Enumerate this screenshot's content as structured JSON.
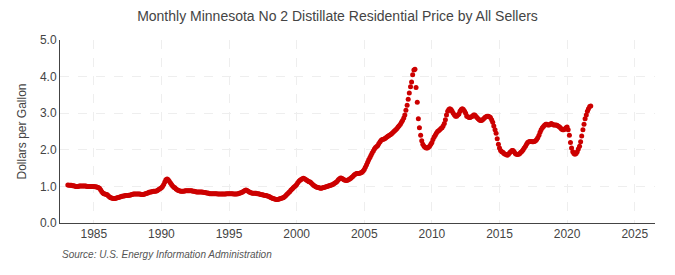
{
  "chart_data": {
    "type": "scatter",
    "title": "Monthly Minnesota No 2 Distillate Residential Price by All Sellers",
    "ylabel": "Dollars per Gallon",
    "annotations": [
      "Source: U.S. Energy Information Administration"
    ],
    "color": "#CC0000",
    "marker": "circle",
    "grid": true,
    "xlim": [
      1982.5,
      2026.5
    ],
    "xticks": [
      1985,
      1990,
      1995,
      2000,
      2005,
      2010,
      2015,
      2020,
      2025
    ],
    "ylim": [
      0.0,
      5.0
    ],
    "yticks": [
      {
        "value": 0.0,
        "label": "0.0"
      },
      {
        "value": 1.0,
        "label": "1.0"
      },
      {
        "value": 2.0,
        "label": "2.0"
      },
      {
        "value": 3.0,
        "label": "3.0"
      },
      {
        "value": 4.0,
        "label": "4.0"
      },
      {
        "value": 5.0,
        "label": "5.0"
      }
    ],
    "x": [
      1983.08,
      1983.17,
      1983.25,
      1983.33,
      1983.42,
      1983.5,
      1983.58,
      1983.67,
      1983.75,
      1983.83,
      1983.92,
      1984.0,
      1984.08,
      1984.17,
      1984.25,
      1984.33,
      1984.42,
      1984.5,
      1984.58,
      1984.67,
      1984.75,
      1984.83,
      1984.92,
      1985.0,
      1985.08,
      1985.17,
      1985.25,
      1985.33,
      1985.42,
      1985.5,
      1985.58,
      1985.67,
      1985.75,
      1985.83,
      1985.92,
      1986.0,
      1986.08,
      1986.17,
      1986.25,
      1986.33,
      1986.42,
      1986.5,
      1986.58,
      1986.67,
      1986.75,
      1986.83,
      1986.92,
      1987.0,
      1987.08,
      1987.17,
      1987.25,
      1987.33,
      1987.42,
      1987.5,
      1987.58,
      1987.67,
      1987.75,
      1987.83,
      1987.92,
      1988.0,
      1988.08,
      1988.17,
      1988.25,
      1988.33,
      1988.42,
      1988.5,
      1988.58,
      1988.67,
      1988.75,
      1988.83,
      1988.92,
      1989.0,
      1989.08,
      1989.17,
      1989.25,
      1989.33,
      1989.42,
      1989.5,
      1989.58,
      1989.67,
      1989.75,
      1989.83,
      1989.92,
      1990.0,
      1990.08,
      1990.17,
      1990.25,
      1990.33,
      1990.42,
      1990.5,
      1990.58,
      1990.67,
      1990.75,
      1990.83,
      1990.92,
      1991.0,
      1991.08,
      1991.17,
      1991.25,
      1991.33,
      1991.42,
      1991.5,
      1991.58,
      1991.67,
      1991.75,
      1991.83,
      1991.92,
      1992.0,
      1992.08,
      1992.17,
      1992.25,
      1992.33,
      1992.42,
      1992.5,
      1992.58,
      1992.67,
      1992.75,
      1992.83,
      1992.92,
      1993.0,
      1993.08,
      1993.17,
      1993.25,
      1993.33,
      1993.42,
      1993.5,
      1993.58,
      1993.67,
      1993.75,
      1993.83,
      1993.92,
      1994.0,
      1994.08,
      1994.17,
      1994.25,
      1994.33,
      1994.42,
      1994.5,
      1994.58,
      1994.67,
      1994.75,
      1994.83,
      1994.92,
      1995.0,
      1995.08,
      1995.17,
      1995.25,
      1995.33,
      1995.42,
      1995.5,
      1995.58,
      1995.67,
      1995.75,
      1995.83,
      1995.92,
      1996.0,
      1996.08,
      1996.17,
      1996.25,
      1996.33,
      1996.42,
      1996.5,
      1996.58,
      1996.67,
      1996.75,
      1996.83,
      1996.92,
      1997.0,
      1997.08,
      1997.17,
      1997.25,
      1997.33,
      1997.42,
      1997.5,
      1997.58,
      1997.67,
      1997.75,
      1997.83,
      1997.92,
      1998.0,
      1998.08,
      1998.17,
      1998.25,
      1998.33,
      1998.42,
      1998.5,
      1998.58,
      1998.67,
      1998.75,
      1998.83,
      1998.92,
      1999.0,
      1999.08,
      1999.17,
      1999.25,
      1999.33,
      1999.42,
      1999.5,
      1999.58,
      1999.67,
      1999.75,
      1999.83,
      1999.92,
      2000.0,
      2000.08,
      2000.17,
      2000.25,
      2000.33,
      2000.42,
      2000.5,
      2000.58,
      2000.67,
      2000.75,
      2000.83,
      2000.92,
      2001.0,
      2001.08,
      2001.17,
      2001.25,
      2001.33,
      2001.42,
      2001.5,
      2001.58,
      2001.67,
      2001.75,
      2001.83,
      2001.92,
      2002.0,
      2002.08,
      2002.17,
      2002.25,
      2002.33,
      2002.42,
      2002.5,
      2002.58,
      2002.67,
      2002.75,
      2002.83,
      2002.92,
      2003.0,
      2003.08,
      2003.17,
      2003.25,
      2003.33,
      2003.42,
      2003.5,
      2003.58,
      2003.67,
      2003.75,
      2003.83,
      2003.92,
      2004.0,
      2004.08,
      2004.17,
      2004.25,
      2004.33,
      2004.42,
      2004.5,
      2004.58,
      2004.67,
      2004.75,
      2004.83,
      2004.92,
      2005.0,
      2005.08,
      2005.17,
      2005.25,
      2005.33,
      2005.42,
      2005.5,
      2005.58,
      2005.67,
      2005.75,
      2005.83,
      2005.92,
      2006.0,
      2006.08,
      2006.17,
      2006.25,
      2006.33,
      2006.42,
      2006.5,
      2006.58,
      2006.67,
      2006.75,
      2006.83,
      2006.92,
      2007.0,
      2007.08,
      2007.17,
      2007.25,
      2007.33,
      2007.42,
      2007.5,
      2007.58,
      2007.67,
      2007.75,
      2007.83,
      2007.92,
      2008.0,
      2008.08,
      2008.17,
      2008.25,
      2008.33,
      2008.42,
      2008.5,
      2008.58,
      2008.67,
      2008.75,
      2008.83,
      2008.92,
      2009.0,
      2009.08,
      2009.17,
      2009.25,
      2009.33,
      2009.42,
      2009.5,
      2009.58,
      2009.67,
      2009.75,
      2009.83,
      2009.92,
      2010.0,
      2010.08,
      2010.17,
      2010.25,
      2010.33,
      2010.42,
      2010.5,
      2010.58,
      2010.67,
      2010.75,
      2010.83,
      2010.92,
      2011.0,
      2011.08,
      2011.17,
      2011.25,
      2011.33,
      2011.42,
      2011.5,
      2011.58,
      2011.67,
      2011.75,
      2011.83,
      2011.92,
      2012.0,
      2012.08,
      2012.17,
      2012.25,
      2012.33,
      2012.42,
      2012.5,
      2012.58,
      2012.67,
      2012.75,
      2012.83,
      2012.92,
      2013.0,
      2013.08,
      2013.17,
      2013.25,
      2013.33,
      2013.42,
      2013.5,
      2013.58,
      2013.67,
      2013.75,
      2013.83,
      2013.92,
      2014.0,
      2014.08,
      2014.17,
      2014.25,
      2014.33,
      2014.42,
      2014.5,
      2014.58,
      2014.67,
      2014.75,
      2014.83,
      2014.92,
      2015.0,
      2015.08,
      2015.17,
      2015.25,
      2015.33,
      2015.42,
      2015.5,
      2015.58,
      2015.67,
      2015.75,
      2015.83,
      2015.92,
      2016.0,
      2016.08,
      2016.17,
      2016.25,
      2016.33,
      2016.42,
      2016.5,
      2016.58,
      2016.67,
      2016.75,
      2016.83,
      2016.92,
      2017.0,
      2017.08,
      2017.17,
      2017.25,
      2017.33,
      2017.42,
      2017.5,
      2017.58,
      2017.67,
      2017.75,
      2017.83,
      2017.92,
      2018.0,
      2018.08,
      2018.17,
      2018.25,
      2018.33,
      2018.42,
      2018.5,
      2018.58,
      2018.67,
      2018.75,
      2018.83,
      2018.92,
      2019.0,
      2019.08,
      2019.17,
      2019.25,
      2019.33,
      2019.42,
      2019.5,
      2019.58,
      2019.67,
      2019.75,
      2019.83,
      2019.92,
      2020.0,
      2020.08,
      2020.17,
      2020.25,
      2020.33,
      2020.42,
      2020.5,
      2020.58,
      2020.67,
      2020.75,
      2020.83,
      2020.92,
      2021.0,
      2021.08,
      2021.17,
      2021.25,
      2021.33,
      2021.42,
      2021.5,
      2021.58,
      2021.67,
      2021.75
    ],
    "values": [
      1.04,
      1.03,
      1.03,
      1.03,
      1.02,
      1.02,
      1.01,
      1.0,
      1.0,
      1.0,
      1.01,
      1.01,
      1.01,
      1.01,
      1.01,
      1.01,
      1.01,
      1.0,
      1.0,
      1.0,
      1.0,
      1.0,
      1.0,
      1.0,
      0.99,
      0.99,
      0.98,
      0.97,
      0.95,
      0.91,
      0.86,
      0.82,
      0.8,
      0.79,
      0.78,
      0.77,
      0.74,
      0.71,
      0.69,
      0.68,
      0.67,
      0.67,
      0.67,
      0.68,
      0.69,
      0.7,
      0.71,
      0.72,
      0.73,
      0.74,
      0.74,
      0.75,
      0.75,
      0.75,
      0.76,
      0.76,
      0.77,
      0.78,
      0.79,
      0.79,
      0.79,
      0.79,
      0.79,
      0.79,
      0.79,
      0.78,
      0.78,
      0.78,
      0.79,
      0.8,
      0.81,
      0.82,
      0.84,
      0.85,
      0.85,
      0.86,
      0.87,
      0.87,
      0.87,
      0.88,
      0.9,
      0.92,
      0.94,
      0.96,
      1.0,
      1.05,
      1.12,
      1.18,
      1.2,
      1.18,
      1.14,
      1.09,
      1.05,
      1.01,
      0.98,
      0.96,
      0.93,
      0.91,
      0.89,
      0.88,
      0.87,
      0.87,
      0.87,
      0.87,
      0.88,
      0.88,
      0.88,
      0.88,
      0.88,
      0.88,
      0.88,
      0.87,
      0.87,
      0.86,
      0.85,
      0.85,
      0.85,
      0.85,
      0.85,
      0.85,
      0.84,
      0.83,
      0.83,
      0.82,
      0.82,
      0.81,
      0.8,
      0.8,
      0.8,
      0.8,
      0.8,
      0.8,
      0.8,
      0.79,
      0.79,
      0.79,
      0.79,
      0.79,
      0.79,
      0.79,
      0.79,
      0.8,
      0.8,
      0.8,
      0.8,
      0.8,
      0.8,
      0.79,
      0.79,
      0.79,
      0.79,
      0.8,
      0.81,
      0.82,
      0.83,
      0.85,
      0.87,
      0.89,
      0.9,
      0.89,
      0.87,
      0.85,
      0.83,
      0.82,
      0.81,
      0.81,
      0.81,
      0.81,
      0.8,
      0.8,
      0.79,
      0.78,
      0.77,
      0.77,
      0.76,
      0.75,
      0.75,
      0.74,
      0.73,
      0.72,
      0.7,
      0.68,
      0.67,
      0.66,
      0.65,
      0.64,
      0.64,
      0.65,
      0.66,
      0.67,
      0.68,
      0.69,
      0.71,
      0.74,
      0.77,
      0.8,
      0.83,
      0.86,
      0.9,
      0.93,
      0.96,
      0.99,
      1.02,
      1.05,
      1.1,
      1.14,
      1.17,
      1.19,
      1.21,
      1.22,
      1.21,
      1.19,
      1.17,
      1.15,
      1.13,
      1.12,
      1.09,
      1.06,
      1.03,
      1.01,
      0.99,
      0.98,
      0.97,
      0.96,
      0.95,
      0.95,
      0.96,
      0.97,
      0.98,
      0.99,
      1.0,
      1.01,
      1.02,
      1.03,
      1.04,
      1.05,
      1.07,
      1.09,
      1.11,
      1.14,
      1.18,
      1.21,
      1.23,
      1.22,
      1.2,
      1.18,
      1.17,
      1.16,
      1.17,
      1.18,
      1.2,
      1.22,
      1.25,
      1.28,
      1.31,
      1.33,
      1.35,
      1.35,
      1.35,
      1.36,
      1.37,
      1.39,
      1.42,
      1.46,
      1.52,
      1.59,
      1.66,
      1.73,
      1.79,
      1.85,
      1.91,
      1.97,
      2.02,
      2.06,
      2.09,
      2.12,
      2.17,
      2.22,
      2.26,
      2.28,
      2.29,
      2.3,
      2.32,
      2.35,
      2.37,
      2.39,
      2.41,
      2.43,
      2.46,
      2.49,
      2.52,
      2.55,
      2.58,
      2.62,
      2.66,
      2.7,
      2.75,
      2.8,
      2.87,
      2.95,
      3.08,
      3.22,
      3.38,
      3.55,
      3.72,
      3.85,
      4.05,
      4.18,
      4.2,
      3.7,
      3.3,
      2.85,
      2.6,
      2.4,
      2.25,
      2.15,
      2.1,
      2.07,
      2.05,
      2.05,
      2.07,
      2.1,
      2.15,
      2.2,
      2.28,
      2.35,
      2.4,
      2.45,
      2.5,
      2.52,
      2.55,
      2.58,
      2.6,
      2.65,
      2.72,
      2.82,
      2.95,
      3.05,
      3.1,
      3.12,
      3.1,
      3.05,
      3.0,
      2.95,
      2.92,
      2.92,
      2.95,
      2.98,
      3.05,
      3.1,
      3.12,
      3.1,
      3.05,
      3.0,
      2.92,
      2.9,
      2.88,
      2.88,
      2.9,
      2.92,
      2.95,
      2.95,
      2.92,
      2.88,
      2.85,
      2.82,
      2.8,
      2.8,
      2.82,
      2.85,
      2.88,
      2.9,
      2.92,
      2.92,
      2.9,
      2.88,
      2.82,
      2.75,
      2.65,
      2.55,
      2.45,
      2.3,
      2.15,
      2.05,
      1.98,
      1.95,
      1.93,
      1.9,
      1.88,
      1.87,
      1.85,
      1.88,
      1.92,
      1.95,
      1.98,
      1.98,
      1.95,
      1.9,
      1.88,
      1.87,
      1.88,
      1.9,
      1.93,
      1.96,
      2.0,
      2.05,
      2.1,
      2.15,
      2.2,
      2.22,
      2.23,
      2.23,
      2.22,
      2.22,
      2.23,
      2.25,
      2.28,
      2.33,
      2.4,
      2.48,
      2.55,
      2.6,
      2.64,
      2.67,
      2.7,
      2.7,
      2.68,
      2.68,
      2.7,
      2.72,
      2.7,
      2.68,
      2.68,
      2.68,
      2.67,
      2.65,
      2.63,
      2.6,
      2.57,
      2.55,
      2.55,
      2.57,
      2.6,
      2.62,
      2.55,
      2.4,
      2.2,
      2.05,
      1.95,
      1.9,
      1.88,
      1.9,
      1.95,
      2.02,
      2.1,
      2.22,
      2.38,
      2.55,
      2.7,
      2.85,
      2.95,
      3.05,
      3.12,
      3.18,
      3.2
    ]
  }
}
